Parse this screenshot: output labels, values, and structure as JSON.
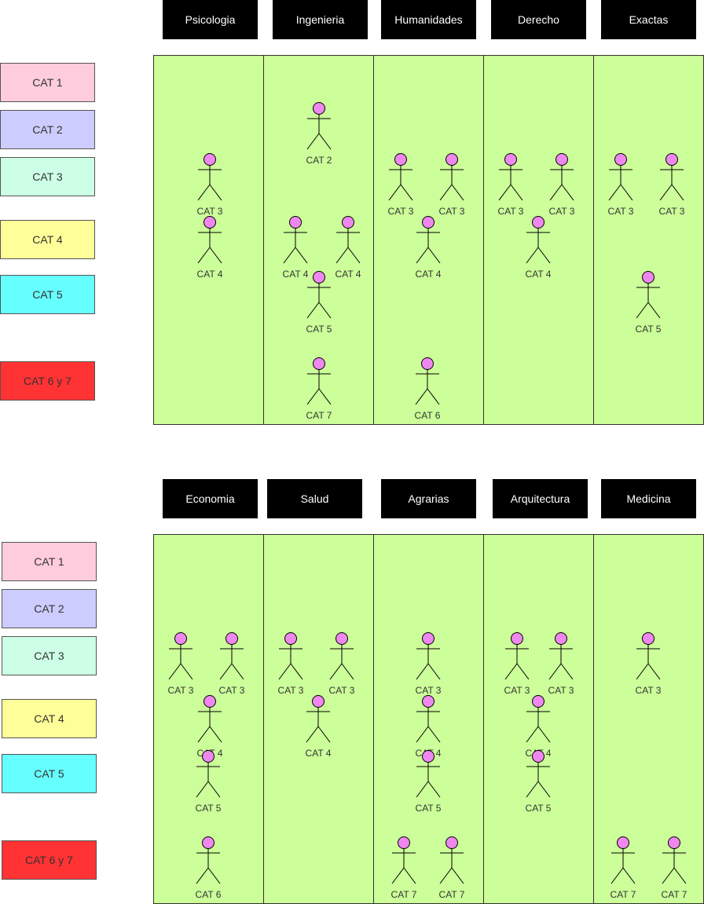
{
  "colors": {
    "panel": "#ccff99",
    "header": "#000000",
    "actor_head": "#ee88ee"
  },
  "legend": [
    {
      "label": "CAT 1",
      "color": "#ffccdd"
    },
    {
      "label": "CAT 2",
      "color": "#ccccff"
    },
    {
      "label": "CAT 3",
      "color": "#ccffe6"
    },
    {
      "label": "CAT 4",
      "color": "#ffff99"
    },
    {
      "label": "CAT 5",
      "color": "#66ffff"
    },
    {
      "label": "CAT 6 y 7",
      "color": "#ff3333"
    }
  ],
  "top_headers": [
    "Psicologia",
    "Ingenieria",
    "Humanidades",
    "Derecho",
    "Exactas"
  ],
  "bottom_headers": [
    "Economia",
    "Salud",
    "Agrarias",
    "Arquitectura",
    "Medicina"
  ],
  "actor_labels": {
    "Psicologia": [
      "CAT 3",
      "CAT 4"
    ],
    "Ingenieria": [
      "CAT 2",
      "CAT 4",
      "CAT 4",
      "CAT 5",
      "CAT 7"
    ],
    "Humanidades": [
      "CAT 3",
      "CAT 3",
      "CAT 4",
      "CAT 6"
    ],
    "Derecho": [
      "CAT 3",
      "CAT 3",
      "CAT 4"
    ],
    "Exactas": [
      "CAT 3",
      "CAT 3",
      "CAT 5"
    ],
    "Economia": [
      "CAT 3",
      "CAT 3",
      "CAT 4",
      "CAT 5",
      "CAT 6"
    ],
    "Salud": [
      "CAT 3",
      "CAT 3",
      "CAT 4"
    ],
    "Agrarias": [
      "CAT 3",
      "CAT 4",
      "CAT 5",
      "CAT 7",
      "CAT 7"
    ],
    "Arquitectura": [
      "CAT 3",
      "CAT 3",
      "CAT 4",
      "CAT 5"
    ],
    "Medicina": [
      "CAT 3",
      "CAT 7",
      "CAT 7"
    ]
  }
}
